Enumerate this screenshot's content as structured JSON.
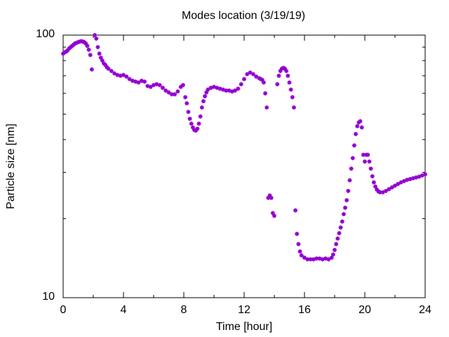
{
  "chart_data": {
    "type": "scatter",
    "title": "Modes location (3/19/19)",
    "xlabel": "Time [hour]",
    "ylabel": "Particle size [nm]",
    "xlim": [
      0,
      24
    ],
    "ylim": [
      10,
      100
    ],
    "yscale": "log",
    "grid": false,
    "legend": "none",
    "marker": "star",
    "color": "#9400d3",
    "x_ticks": [
      "0",
      "4",
      "8",
      "12",
      "16",
      "20",
      "24"
    ],
    "y_ticks": [
      "10",
      "100"
    ],
    "series": [
      {
        "points": [
          [
            0.0,
            85.0
          ],
          [
            0.1,
            86.0
          ],
          [
            0.2,
            86.5
          ],
          [
            0.3,
            87.5
          ],
          [
            0.4,
            89.0
          ],
          [
            0.5,
            90.0
          ],
          [
            0.6,
            91.0
          ],
          [
            0.7,
            92.0
          ],
          [
            0.8,
            93.0
          ],
          [
            0.9,
            93.5
          ],
          [
            1.0,
            94.0
          ],
          [
            1.1,
            94.5
          ],
          [
            1.2,
            94.8
          ],
          [
            1.3,
            94.5
          ],
          [
            1.4,
            94.0
          ],
          [
            1.5,
            93.0
          ],
          [
            1.6,
            91.0
          ],
          [
            1.7,
            88.0
          ],
          [
            1.8,
            84.0
          ],
          [
            1.9,
            74.0
          ],
          [
            2.1,
            100.0
          ],
          [
            2.2,
            97.0
          ],
          [
            2.3,
            90.0
          ],
          [
            2.4,
            85.0
          ],
          [
            2.5,
            82.0
          ],
          [
            2.6,
            80.0
          ],
          [
            2.7,
            78.0
          ],
          [
            2.8,
            77.0
          ],
          [
            2.9,
            75.5
          ],
          [
            3.0,
            74.5
          ],
          [
            3.2,
            73.0
          ],
          [
            3.4,
            71.5
          ],
          [
            3.6,
            70.5
          ],
          [
            3.8,
            70.0
          ],
          [
            4.0,
            70.5
          ],
          [
            4.2,
            69.5
          ],
          [
            4.4,
            68.0
          ],
          [
            4.6,
            67.0
          ],
          [
            4.8,
            66.5
          ],
          [
            5.0,
            66.0
          ],
          [
            5.2,
            67.0
          ],
          [
            5.4,
            66.5
          ],
          [
            5.6,
            64.0
          ],
          [
            5.8,
            63.5
          ],
          [
            6.0,
            64.5
          ],
          [
            6.2,
            65.0
          ],
          [
            6.4,
            64.5
          ],
          [
            6.6,
            63.0
          ],
          [
            6.8,
            61.5
          ],
          [
            7.0,
            60.5
          ],
          [
            7.2,
            59.5
          ],
          [
            7.4,
            59.5
          ],
          [
            7.6,
            61.0
          ],
          [
            7.8,
            63.5
          ],
          [
            7.95,
            64.5
          ],
          [
            8.1,
            58.0
          ],
          [
            8.2,
            55.0
          ],
          [
            8.3,
            51.0
          ],
          [
            8.4,
            48.0
          ],
          [
            8.5,
            46.0
          ],
          [
            8.6,
            44.5
          ],
          [
            8.7,
            43.5
          ],
          [
            8.8,
            43.3
          ],
          [
            8.9,
            44.0
          ],
          [
            9.0,
            46.0
          ],
          [
            9.1,
            49.0
          ],
          [
            9.2,
            53.0
          ],
          [
            9.3,
            56.0
          ],
          [
            9.4,
            58.5
          ],
          [
            9.5,
            60.5
          ],
          [
            9.6,
            62.0
          ],
          [
            9.8,
            63.0
          ],
          [
            10.0,
            63.5
          ],
          [
            10.2,
            63.0
          ],
          [
            10.4,
            62.5
          ],
          [
            10.6,
            62.0
          ],
          [
            10.8,
            61.5
          ],
          [
            11.0,
            61.5
          ],
          [
            11.2,
            61.0
          ],
          [
            11.4,
            61.5
          ],
          [
            11.6,
            62.5
          ],
          [
            11.8,
            65.0
          ],
          [
            12.0,
            68.0
          ],
          [
            12.2,
            71.0
          ],
          [
            12.4,
            72.0
          ],
          [
            12.6,
            71.0
          ],
          [
            12.8,
            69.5
          ],
          [
            13.0,
            68.5
          ],
          [
            13.1,
            68.0
          ],
          [
            13.2,
            67.5
          ],
          [
            13.3,
            66.0
          ],
          [
            13.4,
            60.0
          ],
          [
            13.5,
            53.0
          ],
          [
            13.6,
            24.0
          ],
          [
            13.7,
            24.5
          ],
          [
            13.8,
            24.0
          ],
          [
            13.9,
            21.0
          ],
          [
            14.0,
            20.5
          ],
          [
            14.2,
            65.0
          ],
          [
            14.3,
            70.0
          ],
          [
            14.4,
            73.0
          ],
          [
            14.5,
            74.5
          ],
          [
            14.6,
            75.0
          ],
          [
            14.7,
            74.5
          ],
          [
            14.8,
            73.0
          ],
          [
            14.9,
            70.0
          ],
          [
            15.0,
            66.0
          ],
          [
            15.1,
            62.0
          ],
          [
            15.2,
            58.0
          ],
          [
            15.3,
            53.0
          ],
          [
            15.4,
            21.5
          ],
          [
            15.5,
            17.5
          ],
          [
            15.6,
            16.0
          ],
          [
            15.7,
            15.0
          ],
          [
            15.8,
            14.5
          ],
          [
            16.0,
            14.2
          ],
          [
            16.2,
            14.0
          ],
          [
            16.4,
            14.0
          ],
          [
            16.6,
            14.0
          ],
          [
            16.8,
            14.1
          ],
          [
            17.0,
            14.1
          ],
          [
            17.2,
            14.0
          ],
          [
            17.4,
            14.1
          ],
          [
            17.6,
            14.0
          ],
          [
            17.8,
            14.2
          ],
          [
            17.9,
            14.6
          ],
          [
            18.0,
            15.2
          ],
          [
            18.1,
            16.0
          ],
          [
            18.2,
            16.8
          ],
          [
            18.3,
            17.6
          ],
          [
            18.4,
            18.5
          ],
          [
            18.5,
            19.5
          ],
          [
            18.6,
            20.8
          ],
          [
            18.7,
            22.0
          ],
          [
            18.8,
            23.5
          ],
          [
            18.9,
            25.5
          ],
          [
            19.0,
            28.0
          ],
          [
            19.1,
            31.0
          ],
          [
            19.2,
            34.0
          ],
          [
            19.3,
            38.0
          ],
          [
            19.4,
            42.0
          ],
          [
            19.5,
            45.0
          ],
          [
            19.6,
            46.5
          ],
          [
            19.7,
            47.0
          ],
          [
            19.8,
            44.5
          ],
          [
            19.9,
            35.0
          ],
          [
            20.0,
            33.0
          ],
          [
            20.1,
            35.0
          ],
          [
            20.2,
            35.0
          ],
          [
            20.3,
            33.0
          ],
          [
            20.4,
            31.0
          ],
          [
            20.5,
            29.0
          ],
          [
            20.6,
            27.5
          ],
          [
            20.7,
            26.5
          ],
          [
            20.8,
            25.8
          ],
          [
            20.9,
            25.4
          ],
          [
            21.0,
            25.2
          ],
          [
            21.2,
            25.2
          ],
          [
            21.4,
            25.5
          ],
          [
            21.6,
            25.9
          ],
          [
            21.8,
            26.3
          ],
          [
            22.0,
            26.7
          ],
          [
            22.2,
            27.1
          ],
          [
            22.4,
            27.5
          ],
          [
            22.6,
            27.8
          ],
          [
            22.8,
            28.1
          ],
          [
            23.0,
            28.3
          ],
          [
            23.2,
            28.5
          ],
          [
            23.4,
            28.7
          ],
          [
            23.6,
            28.9
          ],
          [
            23.8,
            29.2
          ],
          [
            24.0,
            29.5
          ]
        ]
      }
    ]
  }
}
